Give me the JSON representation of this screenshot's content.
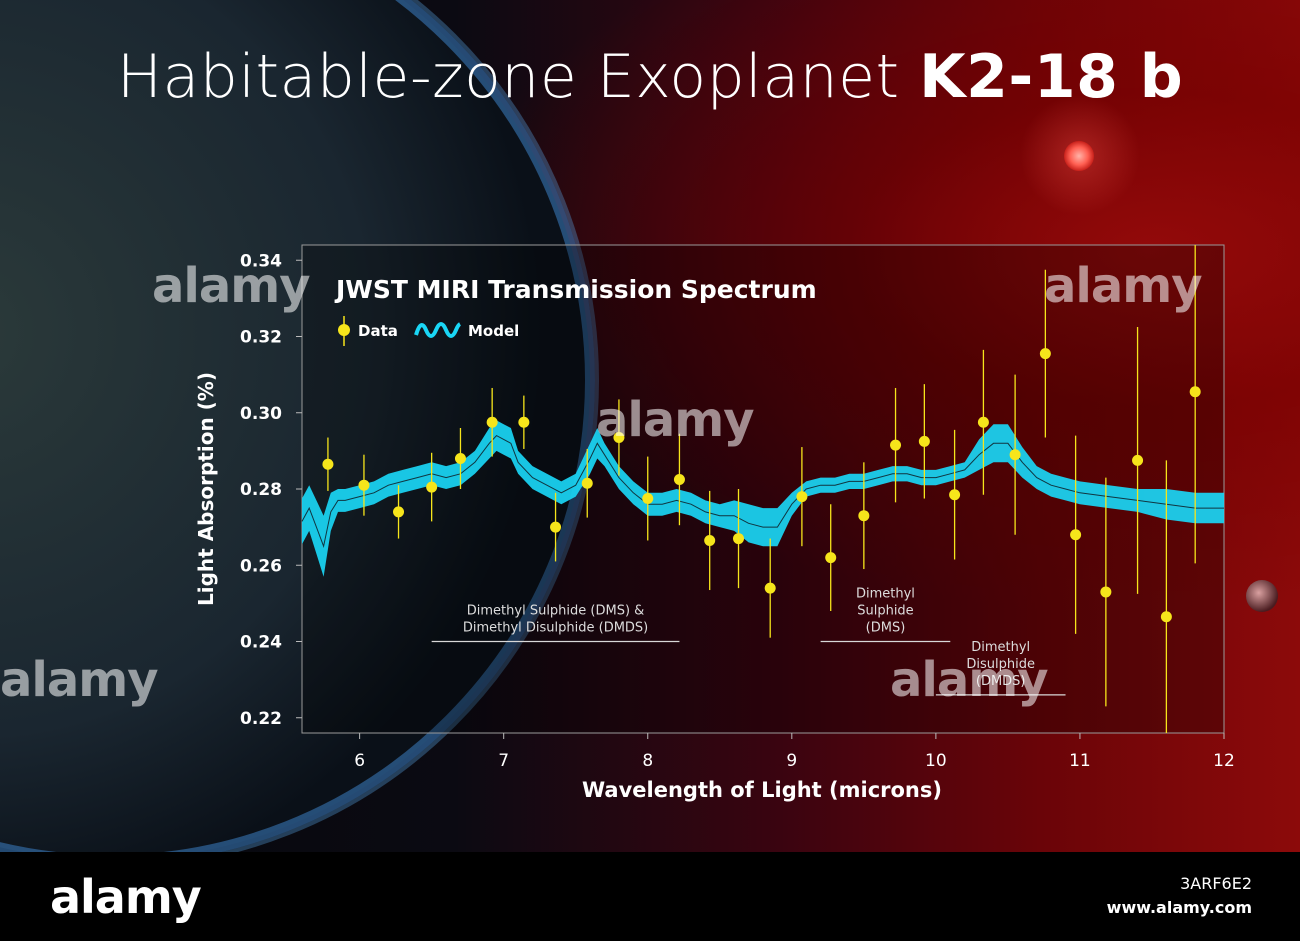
{
  "title": {
    "regular": "Habitable-zone Exoplanet",
    "bold": "K2-18 b"
  },
  "watermark": "alamy",
  "footer": {
    "logo": "alamy",
    "code": "3ARF6E2",
    "url": "www.alamy.com"
  },
  "colors": {
    "data": "#f6e51b",
    "model": "#1ad6f5",
    "axis": "#d8d8d8"
  },
  "chart_data": {
    "type": "scatter",
    "title": "JWST MIRI Transmission Spectrum",
    "xlabel": "Wavelength of Light (microns)",
    "ylabel": "Light Absorption (%)",
    "xlim": [
      5.6,
      12
    ],
    "ylim": [
      0.216,
      0.344
    ],
    "xticks": [
      "6",
      "7",
      "8",
      "9",
      "10",
      "11",
      "12"
    ],
    "yticks": [
      "0.22",
      "0.24",
      "0.26",
      "0.28",
      "0.30",
      "0.32",
      "0.34"
    ],
    "legend": {
      "data": "Data",
      "model": "Model",
      "placement": "top-left"
    },
    "series": [
      {
        "name": "Data",
        "kind": "points",
        "x": [
          5.78,
          6.03,
          6.27,
          6.5,
          6.7,
          6.92,
          7.14,
          7.36,
          7.58,
          7.8,
          8.0,
          8.22,
          8.43,
          8.63,
          8.85,
          9.07,
          9.27,
          9.5,
          9.72,
          9.92,
          10.13,
          10.33,
          10.55,
          10.76,
          10.97,
          11.18,
          11.4,
          11.6,
          11.8
        ],
        "y": [
          0.2865,
          0.281,
          0.274,
          0.2805,
          0.288,
          0.2975,
          0.2975,
          0.27,
          0.2815,
          0.2935,
          0.2775,
          0.2825,
          0.2665,
          0.267,
          0.254,
          0.278,
          0.262,
          0.273,
          0.2915,
          0.2925,
          0.2785,
          0.2975,
          0.289,
          0.3155,
          0.268,
          0.253,
          0.2875,
          0.2465,
          0.3055
        ],
        "err": [
          0.007,
          0.008,
          0.007,
          0.009,
          0.008,
          0.009,
          0.007,
          0.009,
          0.009,
          0.01,
          0.011,
          0.012,
          0.013,
          0.013,
          0.013,
          0.013,
          0.014,
          0.014,
          0.015,
          0.015,
          0.017,
          0.019,
          0.021,
          0.022,
          0.026,
          0.03,
          0.035,
          0.041,
          0.045
        ]
      },
      {
        "name": "Model",
        "kind": "band",
        "x": [
          5.6,
          5.65,
          5.7,
          5.75,
          5.8,
          5.85,
          5.9,
          6.0,
          6.1,
          6.2,
          6.3,
          6.4,
          6.5,
          6.6,
          6.7,
          6.8,
          6.9,
          6.95,
          7.0,
          7.05,
          7.1,
          7.2,
          7.3,
          7.4,
          7.5,
          7.6,
          7.65,
          7.7,
          7.8,
          7.9,
          8.0,
          8.1,
          8.2,
          8.3,
          8.4,
          8.5,
          8.6,
          8.7,
          8.8,
          8.9,
          9.0,
          9.1,
          9.2,
          9.3,
          9.4,
          9.5,
          9.6,
          9.7,
          9.8,
          9.9,
          10.0,
          10.1,
          10.2,
          10.3,
          10.4,
          10.5,
          10.6,
          10.7,
          10.8,
          10.9,
          11.0,
          11.2,
          11.4,
          11.6,
          11.8,
          12.0
        ],
        "y": [
          0.2715,
          0.275,
          0.27,
          0.265,
          0.274,
          0.277,
          0.277,
          0.278,
          0.279,
          0.281,
          0.282,
          0.283,
          0.284,
          0.283,
          0.284,
          0.287,
          0.292,
          0.294,
          0.293,
          0.292,
          0.287,
          0.283,
          0.281,
          0.279,
          0.281,
          0.288,
          0.292,
          0.289,
          0.283,
          0.279,
          0.276,
          0.276,
          0.277,
          0.276,
          0.274,
          0.273,
          0.273,
          0.271,
          0.27,
          0.27,
          0.276,
          0.28,
          0.281,
          0.281,
          0.282,
          0.282,
          0.283,
          0.284,
          0.284,
          0.283,
          0.283,
          0.284,
          0.285,
          0.289,
          0.292,
          0.292,
          0.287,
          0.283,
          0.281,
          0.28,
          0.279,
          0.278,
          0.277,
          0.276,
          0.275,
          0.275
        ],
        "halfwidth": [
          0.006,
          0.006,
          0.007,
          0.008,
          0.005,
          0.003,
          0.003,
          0.003,
          0.003,
          0.003,
          0.003,
          0.003,
          0.003,
          0.003,
          0.003,
          0.003,
          0.004,
          0.004,
          0.004,
          0.004,
          0.003,
          0.003,
          0.003,
          0.003,
          0.003,
          0.004,
          0.004,
          0.003,
          0.003,
          0.003,
          0.003,
          0.003,
          0.003,
          0.003,
          0.003,
          0.003,
          0.004,
          0.005,
          0.005,
          0.005,
          0.003,
          0.002,
          0.002,
          0.002,
          0.002,
          0.002,
          0.002,
          0.002,
          0.002,
          0.002,
          0.002,
          0.002,
          0.002,
          0.004,
          0.005,
          0.005,
          0.004,
          0.003,
          0.003,
          0.003,
          0.003,
          0.003,
          0.003,
          0.004,
          0.004,
          0.004
        ]
      }
    ],
    "annotations": [
      {
        "lines": [
          "Dimethyl Sulphide (DMS) &",
          "Dimethyl Disulphide (DMDS)"
        ],
        "x_range": [
          6.5,
          8.22
        ],
        "y": 0.24
      },
      {
        "lines": [
          "Dimethyl",
          "Sulphide",
          "(DMS)"
        ],
        "x_range": [
          9.2,
          10.1
        ],
        "y": 0.24
      },
      {
        "lines": [
          "Dimethyl",
          "Disulphide",
          "(DMDS)"
        ],
        "x_range": [
          10.0,
          10.9
        ],
        "y": 0.226
      }
    ]
  }
}
